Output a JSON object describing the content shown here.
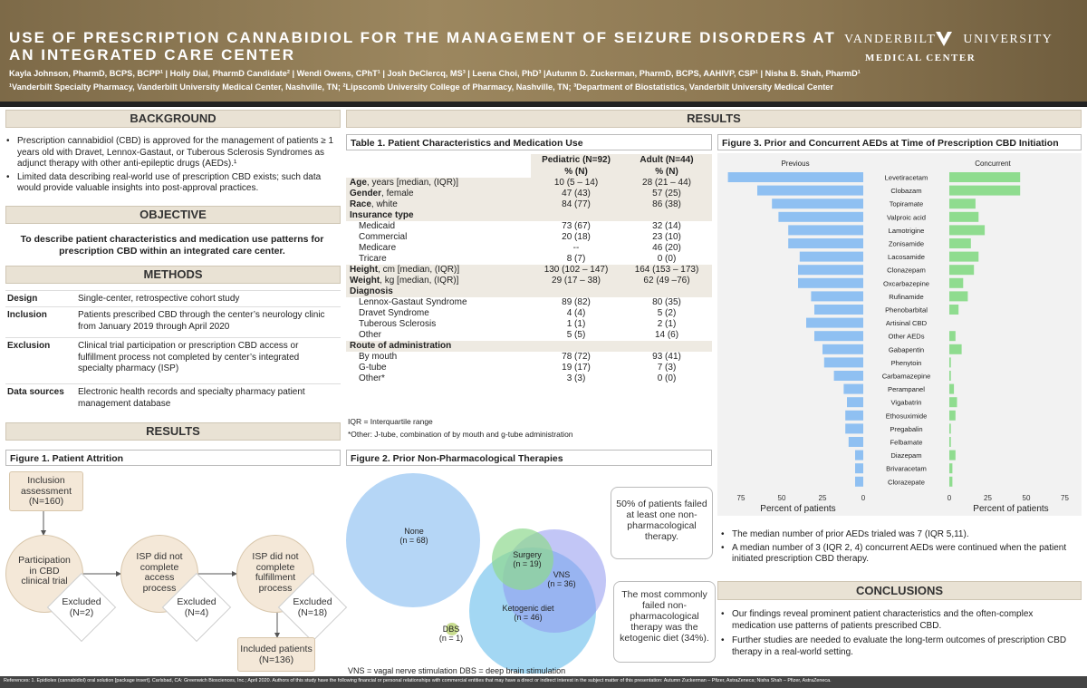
{
  "header": {
    "title_line1": "USE OF PRESCRIPTION CANNABIDIOL FOR THE MANAGEMENT OF SEIZURE DISORDERS AT",
    "title_line2": "AN INTEGRATED CARE CENTER",
    "authors": "Kayla Johnson, PharmD, BCPS, BCPP¹ | Holly Dial, PharmD Candidate² | Wendi Owens, CPhT¹ | Josh DeClercq, MS³ | Leena Choi, PhD³ |Autumn D. Zuckerman, PharmD, BCPS, AAHIVP,  CSP¹ | Nisha B. Shah, PharmD¹",
    "affiliations": "¹Vanderbilt Specialty Pharmacy, Vanderbilt University Medical Center, Nashville, TN; ²Lipscomb University College of Pharmacy, Nashville, TN; ³Department of Biostatistics, Vanderbilt University Medical Center",
    "logo_line1": "VANDERBILT",
    "logo_line1b": "UNIVERSITY",
    "logo_line2": "MEDICAL CENTER"
  },
  "colors": {
    "header_gold": "#8f7a53",
    "bar_previous": "#8fc0f2",
    "bar_concurrent": "#8fdc8f",
    "section_bg": "#e9e2d4"
  },
  "background": {
    "heading": "BACKGROUND",
    "bullets": [
      "Prescription cannabidiol (CBD) is approved for the management of patients ≥ 1 years old with Dravet, Lennox-Gastaut, or Tuberous Sclerosis Syndromes as adjunct therapy with other anti-epileptic drugs (AEDs).¹",
      "Limited data describing real-world use of prescription CBD exists; such data would provide valuable insights into post-approval practices."
    ]
  },
  "objective": {
    "heading": "OBJECTIVE",
    "text": "To describe patient characteristics and medication use patterns for prescription CBD within an integrated care center."
  },
  "methods": {
    "heading": "METHODS",
    "rows": [
      {
        "label": "Design",
        "value": "Single-center, retrospective cohort study"
      },
      {
        "label": "Inclusion",
        "value": "Patients prescribed CBD through the center’s neurology clinic from January 2019 through April 2020"
      },
      {
        "label": "Exclusion",
        "value": "Clinical trial participation or prescription CBD access or fulfillment process not completed by center’s integrated specialty pharmacy (ISP)"
      },
      {
        "label": "Data sources",
        "value": "Electronic health records and specialty pharmacy patient management database"
      }
    ]
  },
  "results_left": {
    "heading": "RESULTS"
  },
  "results_main": {
    "heading": "RESULTS"
  },
  "figure1": {
    "title": "Figure 1. Patient Attrition",
    "inclusion": "Inclusion assessment (N=160)",
    "step1": "Participation in CBD clinical trial",
    "step2": "ISP did not complete access process",
    "step3": "ISP did not complete fulfillment process",
    "excl1": "Excluded (N=2)",
    "excl2": "Excluded (N=4)",
    "excl3": "Excluded (N=18)",
    "included": "Included patients (N=136)"
  },
  "table1": {
    "title": "Table 1. Patient Characteristics and Medication Use",
    "col1": "Pediatric (N=92)",
    "col2": "Adult (N=44)",
    "col_unit": "% (N)",
    "rows": [
      {
        "label": "Age",
        "suffix": ", years [median, (IQR)]",
        "bold": true,
        "p": "10 (5 – 14)",
        "a": "28 (21 – 44)"
      },
      {
        "label": "Gender",
        "suffix": ", female",
        "bold": true,
        "p": "47 (43)",
        "a": "57 (25)"
      },
      {
        "label": "Race",
        "suffix": ", white",
        "bold": true,
        "p": "84 (77)",
        "a": "86 (38)"
      },
      {
        "label": "Insurance type",
        "suffix": "",
        "bold": true,
        "p": "",
        "a": ""
      },
      {
        "label": "Medicaid",
        "suffix": "",
        "bold": false,
        "p": "73 (67)",
        "a": "32 (14)"
      },
      {
        "label": "Commercial",
        "suffix": "",
        "bold": false,
        "p": "20 (18)",
        "a": "23 (10)"
      },
      {
        "label": "Medicare",
        "suffix": "",
        "bold": false,
        "p": "--",
        "a": "46 (20)"
      },
      {
        "label": "Tricare",
        "suffix": "",
        "bold": false,
        "p": "8 (7)",
        "a": "0 (0)"
      },
      {
        "label": "Height",
        "suffix": ", cm [median, (IQR)]",
        "bold": true,
        "p": "130 (102 – 147)",
        "a": "164 (153 – 173)"
      },
      {
        "label": "Weight",
        "suffix": ", kg [median, (IQR)]",
        "bold": true,
        "p": "29 (17 – 38)",
        "a": "62 (49 –76)"
      },
      {
        "label": "Diagnosis",
        "suffix": "",
        "bold": true,
        "p": "",
        "a": ""
      },
      {
        "label": "Lennox-Gastaut Syndrome",
        "suffix": "",
        "bold": false,
        "p": "89 (82)",
        "a": "80 (35)"
      },
      {
        "label": "Dravet Syndrome",
        "suffix": "",
        "bold": false,
        "p": "4 (4)",
        "a": "5 (2)"
      },
      {
        "label": "Tuberous Sclerosis",
        "suffix": "",
        "bold": false,
        "p": "1 (1)",
        "a": "2 (1)"
      },
      {
        "label": "Other",
        "suffix": "",
        "bold": false,
        "p": "5 (5)",
        "a": "14 (6)"
      },
      {
        "label": "Route of administration",
        "suffix": "",
        "bold": true,
        "p": "",
        "a": ""
      },
      {
        "label": "By mouth",
        "suffix": "",
        "bold": false,
        "p": "78 (72)",
        "a": "93 (41)"
      },
      {
        "label": "G-tube",
        "suffix": "",
        "bold": false,
        "p": "19 (17)",
        "a": "7 (3)"
      },
      {
        "label": "Other*",
        "suffix": "",
        "bold": false,
        "p": "3 (3)",
        "a": "0 (0)"
      }
    ],
    "note1": "IQR = Interquartile range",
    "note2": "*Other: J-tube, combination of by mouth and g-tube administration"
  },
  "figure2": {
    "title": "Figure 2. Prior Non-Pharmacological Therapies",
    "none": "None",
    "none_n": "(n = 68)",
    "surgery": "Surgery",
    "surgery_n": "(n = 19)",
    "vns": "VNS",
    "vns_n": "(n = 36)",
    "keto": "Ketogenic diet",
    "keto_n": "(n = 46)",
    "dbs": "DBS",
    "dbs_n": "(n = 1)",
    "footnote": "VNS = vagal nerve stimulation DBS = deep brain stimulation",
    "callout1": "50% of patients failed at least one non-pharmacological therapy.",
    "callout2": "The most commonly failed non-pharmacological therapy was the ketogenic diet (34%)."
  },
  "chart_data": {
    "type": "bar",
    "title": "Figure 3. Prior and Concurrent AEDs at Time of Prescription CBD Initiation",
    "categories": [
      "Levetiracetam",
      "Clobazam",
      "Topiramate",
      "Valproic acid",
      "Lamotrigine",
      "Zonisamide",
      "Lacosamide",
      "Clonazepam",
      "Oxcarbazepine",
      "Rufinamide",
      "Phenobarbital",
      "Artisinal CBD",
      "Other AEDs",
      "Gabapentin",
      "Phenytoin",
      "Carbamazepine",
      "Perampanel",
      "Vigabatrin",
      "Ethosuximide",
      "Pregabalin",
      "Felbamate",
      "Diazepam",
      "Brivaracetam",
      "Clorazepate"
    ],
    "series": [
      {
        "name": "Previous",
        "values": [
          83,
          65,
          56,
          52,
          46,
          46,
          39,
          40,
          40,
          32,
          30,
          35,
          30,
          25,
          24,
          18,
          12,
          10,
          11,
          11,
          9,
          5,
          5,
          5
        ]
      },
      {
        "name": "Concurrent",
        "values": [
          46,
          46,
          17,
          19,
          23,
          14,
          19,
          16,
          9,
          12,
          6,
          0,
          4,
          8,
          1,
          1,
          3,
          5,
          4,
          1,
          1,
          4,
          2,
          2
        ]
      }
    ],
    "xlabel": "Percent of patients",
    "xticks_left": [
      "75",
      "50",
      "25",
      "0"
    ],
    "xticks_right": [
      "0",
      "25",
      "50",
      "75"
    ],
    "xlim": [
      0,
      85
    ]
  },
  "figure3_bullets": [
    "The median number of prior AEDs trialed was 7 (IQR 5,11).",
    "A median number of 3 (IQR 2, 4) concurrent AEDs were continued when the patient initiated prescription CBD therapy."
  ],
  "conclusions": {
    "heading": "CONCLUSIONS",
    "bullets": [
      "Our findings reveal prominent patient characteristics and the often-complex medication use patterns of patients prescribed CBD.",
      "Further studies are needed to evaluate the long-term outcomes of prescription CBD therapy in a real-world setting."
    ]
  },
  "references": "References: 1. Epidiolex (cannabidiol) oral solution [package insert]. Carlsbad, CA: Greenwich Biosciences, Inc.; April 2020. Authors of this study have the following financial or personal relationships with commercial entities that may have a direct or indirect interest in the subject matter of this presentation: Autumn Zuckerman – Pfizer, AstraZeneca; Nisha Shah – Pfizer, AstraZeneca."
}
